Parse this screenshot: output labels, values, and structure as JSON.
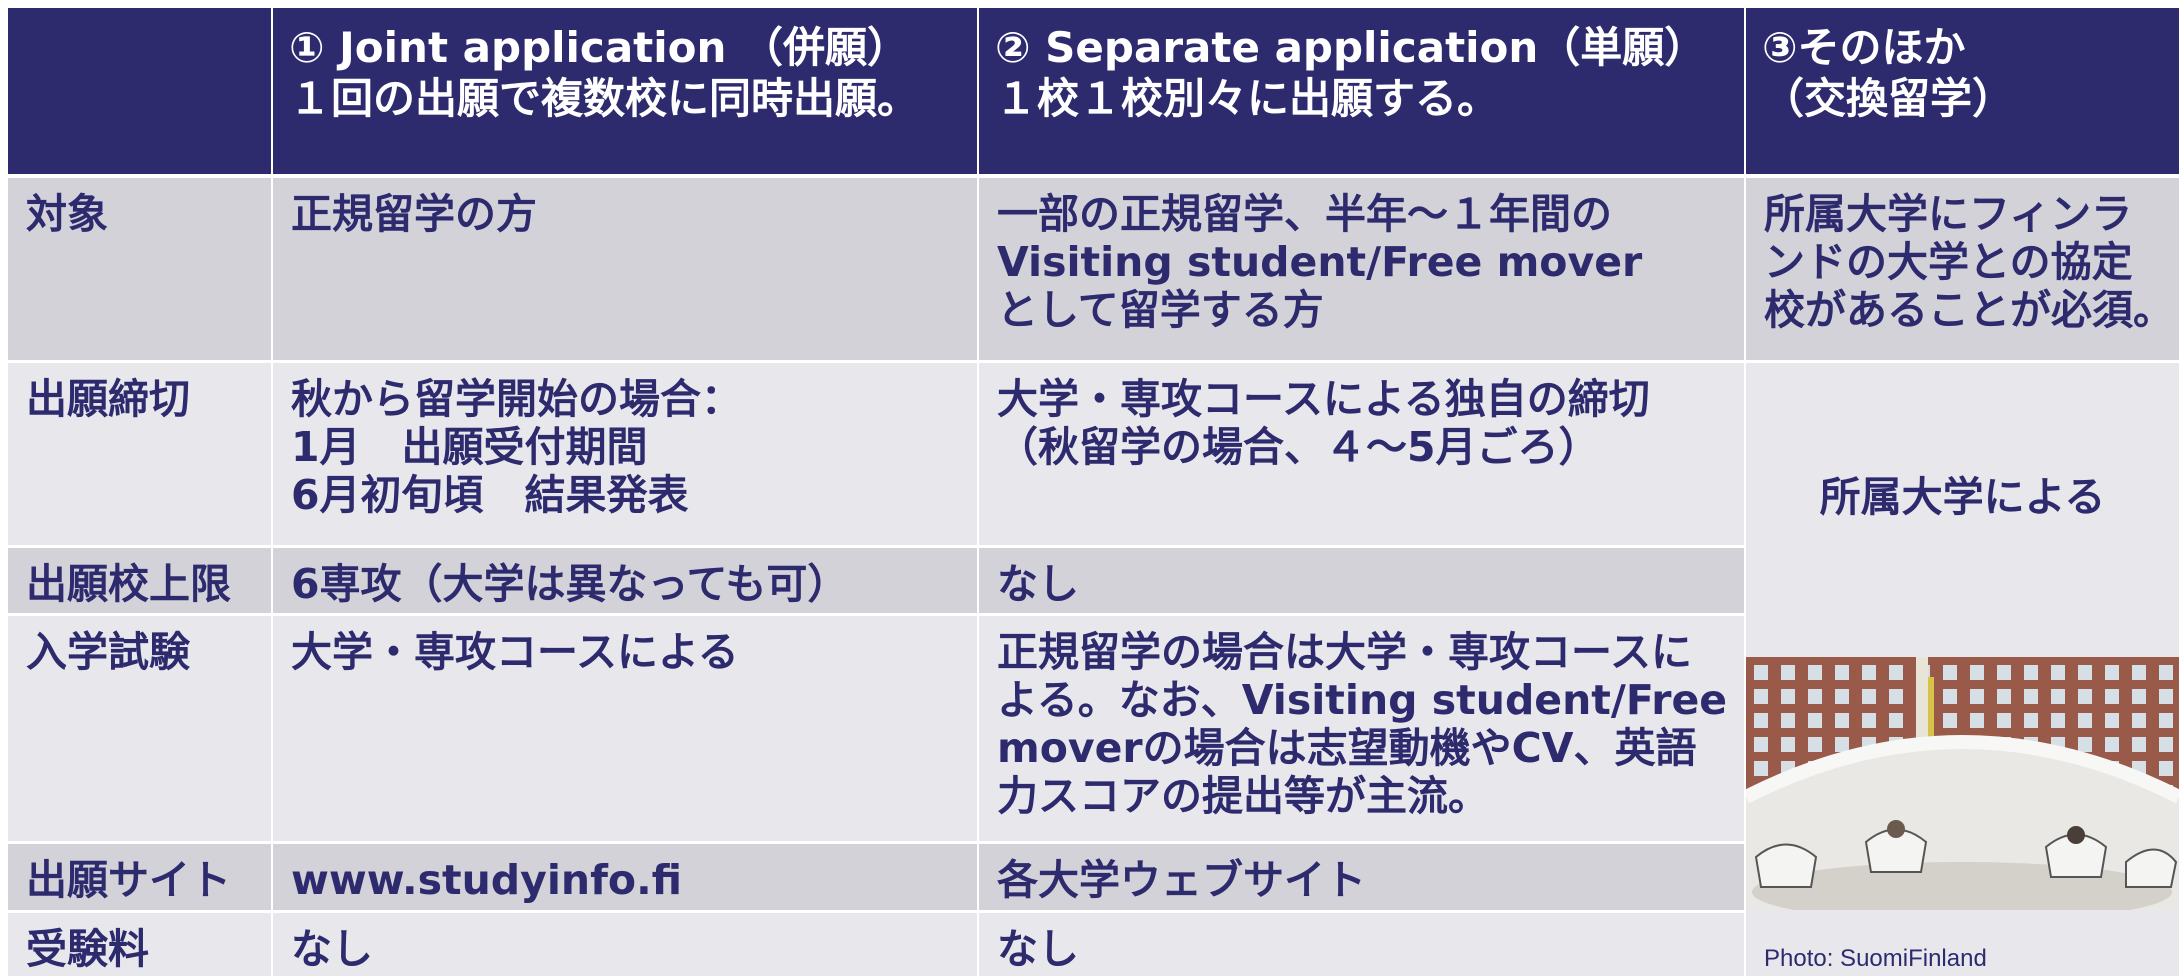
{
  "header": {
    "columns": [
      [
        "① Joint application （併願）",
        "１回の出願で複数校に同時出願。"
      ],
      [
        "② Separate application（単願）",
        "１校１校別々に出願する。"
      ],
      [
        "③そのほか",
        "（交換留学）"
      ]
    ]
  },
  "rows": [
    {
      "label": "対象",
      "cells": [
        [
          "正規留学の方"
        ],
        [
          "一部の正規留学、半年〜１年間の",
          "Visiting student/Free mover",
          "として留学する方"
        ],
        [
          "所属大学にフィンラ",
          "ンドの大学との協定",
          "校があることが必須。"
        ]
      ]
    },
    {
      "label": "出願締切",
      "cells": [
        [
          "秋から留学開始の場合：",
          "1月　出願受付期間",
          "6月初旬頃　結果発表"
        ],
        [
          "大学・専攻コースによる独自の締切",
          "（秋留学の場合、４〜5月ごろ）"
        ]
      ]
    },
    {
      "label": "出願校上限",
      "cells": [
        [
          "6専攻（大学は異なっても可）"
        ],
        [
          "なし"
        ]
      ]
    },
    {
      "label": "入学試験",
      "cells": [
        [
          "大学・専攻コースによる"
        ],
        [
          "正規留学の場合は大学・専攻コースに",
          "よる。なお、Visiting student/Free",
          "moverの場合は志望動機やCV、英語",
          "力スコアの提出等が主流。"
        ]
      ]
    },
    {
      "label": "出願サイト",
      "cells": [
        [
          "www.studyinfo.fi"
        ],
        [
          "各大学ウェブサイト"
        ]
      ]
    },
    {
      "label": "受験料",
      "cells": [
        [
          "なし"
        ],
        [
          "なし"
        ]
      ]
    }
  ],
  "exchange_note": "所属大学による",
  "photo_credit": "Photo: SuomiFinland"
}
